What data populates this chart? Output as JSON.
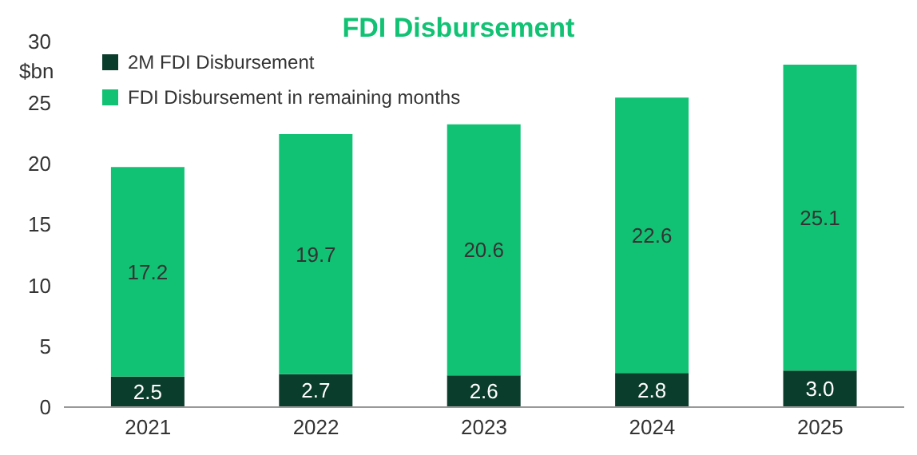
{
  "chart_data": {
    "type": "bar",
    "title": "FDI Disbursement",
    "ylabel": "$bn",
    "categories": [
      "2021",
      "2022",
      "2023",
      "2024",
      "2025"
    ],
    "stacked": true,
    "series": [
      {
        "name": "2M FDI Disbursement",
        "color": "#0b3d2c",
        "values": [
          2.5,
          2.7,
          2.6,
          2.8,
          3.0
        ],
        "value_labels": [
          "2.5",
          "2.7",
          "2.6",
          "2.8",
          "3.0"
        ]
      },
      {
        "name": "FDI Disbursement in remaining months",
        "color": "#12c274",
        "values": [
          17.2,
          19.7,
          20.6,
          22.6,
          25.1
        ],
        "value_labels": [
          "17.2",
          "19.7",
          "20.6",
          "22.6",
          "25.1"
        ]
      }
    ],
    "ylim": [
      0,
      30
    ],
    "yticks": [
      0,
      5,
      10,
      15,
      20,
      25,
      30
    ],
    "legend": "top left"
  }
}
